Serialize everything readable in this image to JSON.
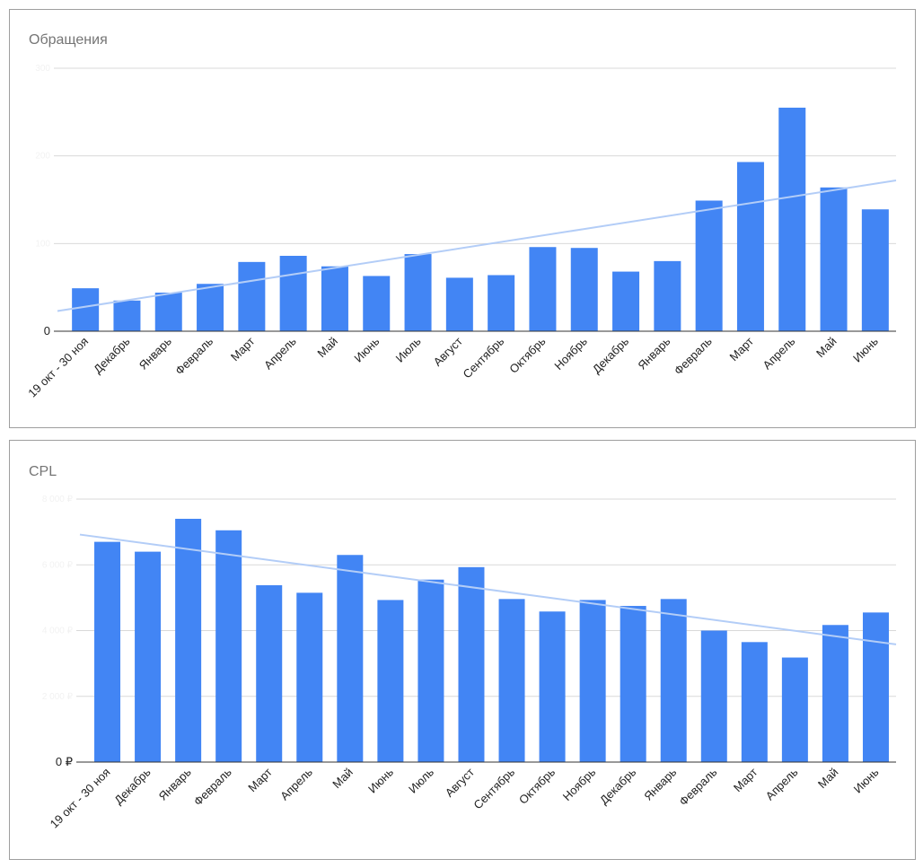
{
  "charts": [
    {
      "title": "Обращения",
      "chart_data": {
        "type": "bar",
        "title": "Обращения",
        "categories": [
          "19 окт - 30 ноя",
          "Декабрь",
          "Январь",
          "Февраль",
          "Март",
          "Апрель",
          "Май",
          "Июнь",
          "Июль",
          "Август",
          "Сентябрь",
          "Октябрь",
          "Ноябрь",
          "Декабрь",
          "Январь",
          "Февраль",
          "Март",
          "Апрель",
          "Май",
          "Июнь"
        ],
        "values": [
          49,
          35,
          44,
          54,
          79,
          86,
          74,
          63,
          88,
          61,
          64,
          96,
          95,
          68,
          80,
          149,
          193,
          255,
          164,
          139
        ],
        "ylim": [
          0,
          300
        ],
        "yticks": [
          0,
          100,
          200,
          300
        ],
        "ytick_labels": [
          "0",
          "100",
          "200",
          "300"
        ],
        "trendline": {
          "start": 23,
          "end": 172
        },
        "bar_color": "#4285f4",
        "trend_color": "#b3cdf7",
        "grid": true
      }
    },
    {
      "title": "CPL",
      "chart_data": {
        "type": "bar",
        "title": "CPL",
        "categories": [
          "19 окт - 30 ноя",
          "Декабрь",
          "Январь",
          "Февраль",
          "Март",
          "Апрель",
          "Май",
          "Июнь",
          "Июль",
          "Август",
          "Сентябрь",
          "Октябрь",
          "Ноябрь",
          "Декабрь",
          "Январь",
          "Февраль",
          "Март",
          "Апрель",
          "Май",
          "Июнь"
        ],
        "values": [
          6700,
          6400,
          7400,
          7050,
          5380,
          5150,
          6300,
          4930,
          5550,
          5930,
          4960,
          4580,
          4930,
          4750,
          4960,
          4000,
          3650,
          3180,
          4170,
          4550
        ],
        "ylim": [
          0,
          8000
        ],
        "yticks": [
          0,
          2000,
          4000,
          6000,
          8000
        ],
        "ytick_labels": [
          "0 ₽",
          "2 000 ₽",
          "4 000 ₽",
          "6 000 ₽",
          "8 000 ₽"
        ],
        "trendline": {
          "start": 6920,
          "end": 3580
        },
        "bar_color": "#4285f4",
        "trend_color": "#b3cdf7",
        "grid": true
      }
    }
  ]
}
